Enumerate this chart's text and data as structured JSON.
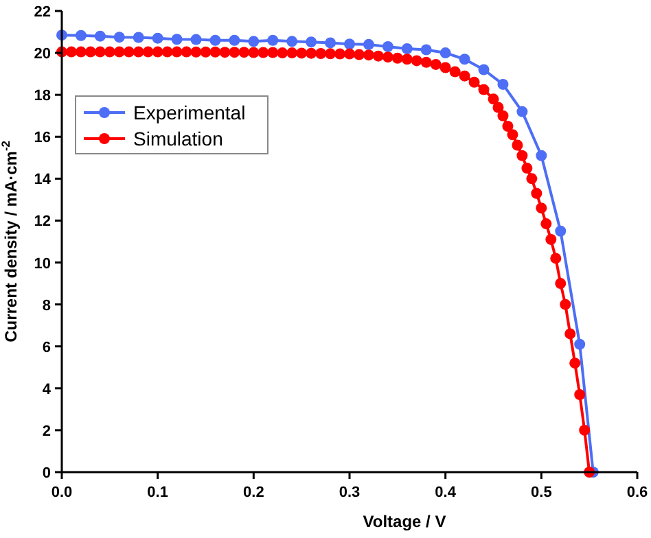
{
  "chart_data": {
    "type": "line",
    "xlabel": "Voltage / V",
    "ylabel": "Current density / mA·cm$^{-2}$",
    "xlim": [
      0,
      0.6
    ],
    "ylim": [
      0,
      22
    ],
    "xticks": [
      {
        "value": 0,
        "label": "0.0"
      },
      {
        "value": 0.1,
        "label": "0.1"
      },
      {
        "value": 0.2,
        "label": "0.2"
      },
      {
        "value": 0.3,
        "label": "0.3"
      },
      {
        "value": 0.4,
        "label": "0.4"
      },
      {
        "value": 0.5,
        "label": "0.5"
      },
      {
        "value": 0.6,
        "label": "0.6"
      }
    ],
    "yticks": [
      0,
      2,
      4,
      6,
      8,
      10,
      12,
      14,
      16,
      18,
      20,
      22
    ],
    "grid": false,
    "legend": "top left",
    "marker": "circle",
    "line_style": "solid",
    "series": [
      {
        "name": "Experimental",
        "color": "#4d6ef5",
        "x": [
          0,
          0.02,
          0.04,
          0.06,
          0.08,
          0.1,
          0.12,
          0.14,
          0.16,
          0.18,
          0.2,
          0.22,
          0.24,
          0.26,
          0.28,
          0.3,
          0.32,
          0.34,
          0.36,
          0.38,
          0.4,
          0.42,
          0.44,
          0.46,
          0.48,
          0.5,
          0.52,
          0.54,
          0.554
        ],
        "values": [
          20.85,
          20.83,
          20.8,
          20.75,
          20.74,
          20.7,
          20.65,
          20.64,
          20.6,
          20.6,
          20.55,
          20.6,
          20.55,
          20.52,
          20.48,
          20.42,
          20.4,
          20.3,
          20.2,
          20.15,
          20.0,
          19.7,
          19.2,
          18.5,
          17.2,
          15.1,
          11.5,
          6.1,
          0
        ]
      },
      {
        "name": "Simulation",
        "color": "#ff0000",
        "x": [
          0,
          0.01,
          0.02,
          0.03,
          0.04,
          0.05,
          0.06,
          0.07,
          0.08,
          0.09,
          0.1,
          0.11,
          0.12,
          0.13,
          0.14,
          0.15,
          0.16,
          0.17,
          0.18,
          0.19,
          0.2,
          0.21,
          0.22,
          0.23,
          0.24,
          0.25,
          0.26,
          0.27,
          0.28,
          0.29,
          0.3,
          0.31,
          0.32,
          0.33,
          0.34,
          0.35,
          0.36,
          0.37,
          0.38,
          0.39,
          0.4,
          0.41,
          0.42,
          0.43,
          0.44,
          0.45,
          0.455,
          0.46,
          0.465,
          0.47,
          0.475,
          0.48,
          0.485,
          0.49,
          0.495,
          0.5,
          0.505,
          0.51,
          0.515,
          0.52,
          0.525,
          0.53,
          0.535,
          0.54,
          0.545,
          0.55
        ],
        "values": [
          20.05,
          20.05,
          20.05,
          20.05,
          20.05,
          20.05,
          20.05,
          20.05,
          20.05,
          20.05,
          20.05,
          20.05,
          20.05,
          20.05,
          20.04,
          20.04,
          20.04,
          20.03,
          20.03,
          20.03,
          20.02,
          20.02,
          20.02,
          20.0,
          20.0,
          19.99,
          19.98,
          19.97,
          19.96,
          19.95,
          19.95,
          19.92,
          19.9,
          19.85,
          19.8,
          19.75,
          19.7,
          19.63,
          19.55,
          19.45,
          19.3,
          19.1,
          18.9,
          18.6,
          18.25,
          17.8,
          17.4,
          17.0,
          16.5,
          16.1,
          15.6,
          15.1,
          14.5,
          14.0,
          13.3,
          12.6,
          11.85,
          11.1,
          10.2,
          9.0,
          8.0,
          6.6,
          5.2,
          3.7,
          2.0,
          0
        ]
      }
    ]
  }
}
